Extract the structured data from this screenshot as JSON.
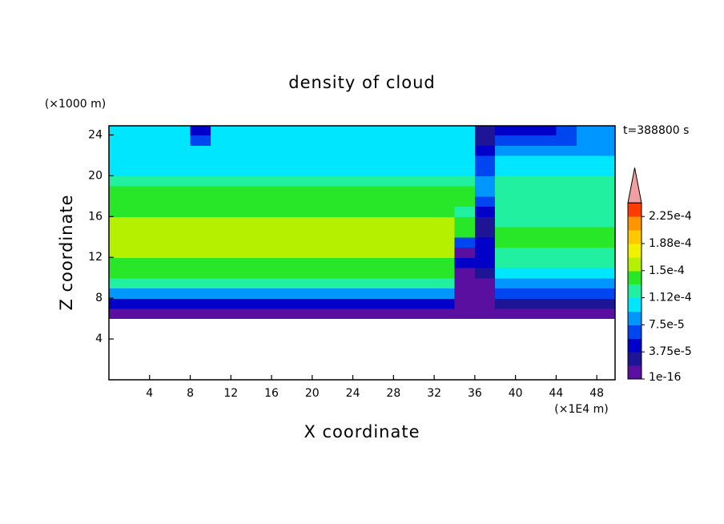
{
  "chart_data": {
    "type": "contour",
    "title": "density of cloud",
    "x_label": "X coordinate",
    "y_label": "Z coordinate",
    "x_unit": "(×1E4 m)",
    "y_unit": "(×1000 m)",
    "annotation": "t=388800 s",
    "xlim": [
      0,
      49.8
    ],
    "ylim": [
      0,
      24.9
    ],
    "xticks": [
      4,
      8,
      12,
      16,
      20,
      24,
      28,
      32,
      36,
      40,
      44,
      48
    ],
    "yticks": [
      4,
      8,
      12,
      16,
      20,
      24
    ],
    "x": [
      1,
      3,
      5,
      7,
      9,
      11,
      13,
      15,
      17,
      19,
      21,
      23,
      25,
      27,
      29,
      31,
      33,
      35,
      37,
      39,
      41,
      43,
      45,
      47,
      49
    ],
    "y": [
      6.5,
      7.5,
      8.5,
      9.5,
      10.5,
      11.5,
      12.5,
      13.5,
      14.5,
      15.5,
      16.5,
      17.5,
      18.5,
      19.5,
      20.5,
      21.5,
      22.5,
      23.5,
      24.5
    ],
    "values": [
      [
        1e-05,
        1e-05,
        1e-05,
        1e-05,
        1e-05,
        1e-05,
        1e-05,
        1e-05,
        1e-05,
        1e-05,
        1e-05,
        1e-05,
        1e-05,
        1e-05,
        1e-05,
        1e-05,
        1e-05,
        1e-05,
        1e-05,
        1e-05,
        1e-05,
        1e-05,
        1e-05,
        1e-05,
        1e-05
      ],
      [
        4e-05,
        4e-05,
        4e-05,
        4e-05,
        4e-05,
        4e-05,
        4e-05,
        4e-05,
        4e-05,
        4e-05,
        4e-05,
        4e-05,
        4e-05,
        4e-05,
        4e-05,
        4e-05,
        4e-05,
        1e-05,
        1e-05,
        3e-05,
        3e-05,
        3e-05,
        3e-05,
        3e-05,
        3e-05
      ],
      [
        8e-05,
        8e-05,
        8e-05,
        8e-05,
        8e-05,
        8e-05,
        8e-05,
        8e-05,
        8e-05,
        8e-05,
        8e-05,
        8e-05,
        8e-05,
        8e-05,
        8e-05,
        8e-05,
        8e-05,
        1e-05,
        1e-05,
        6e-05,
        6e-05,
        6e-05,
        6e-05,
        6e-05,
        6e-05
      ],
      [
        0.000115,
        0.000115,
        0.000115,
        0.000115,
        0.000115,
        0.000115,
        0.000115,
        0.000115,
        0.000115,
        0.000115,
        0.000115,
        0.000115,
        0.000115,
        0.000115,
        0.000115,
        0.000115,
        0.000115,
        1e-05,
        1e-05,
        9e-05,
        9e-05,
        9e-05,
        9e-05,
        9e-05,
        9e-05
      ],
      [
        0.000135,
        0.000135,
        0.000135,
        0.000135,
        0.000135,
        0.000135,
        0.000135,
        0.000135,
        0.000135,
        0.000135,
        0.000135,
        0.000135,
        0.000135,
        0.000135,
        0.000135,
        0.000135,
        0.000135,
        1e-05,
        3e-05,
        0.00011,
        0.00011,
        0.00011,
        0.00011,
        0.00011,
        0.00011
      ],
      [
        0.00014,
        0.00014,
        0.00014,
        0.00014,
        0.00014,
        0.00014,
        0.00014,
        0.00014,
        0.00014,
        0.00014,
        0.00014,
        0.00014,
        0.00014,
        0.00014,
        0.00014,
        0.00014,
        0.00014,
        5e-05,
        5e-05,
        0.00012,
        0.00012,
        0.00012,
        0.00012,
        0.00012,
        0.00012
      ],
      [
        0.00016,
        0.00016,
        0.00016,
        0.00016,
        0.00016,
        0.00016,
        0.00016,
        0.00016,
        0.00016,
        0.00016,
        0.00016,
        0.00016,
        0.00016,
        0.00016,
        0.00016,
        0.00016,
        0.00016,
        1e-05,
        5e-05,
        0.00013,
        0.00013,
        0.00013,
        0.00013,
        0.00013,
        0.00013
      ],
      [
        0.00016,
        0.00016,
        0.00016,
        0.00016,
        0.00016,
        0.00016,
        0.00016,
        0.00016,
        0.00016,
        0.00016,
        0.00016,
        0.00016,
        0.00016,
        0.00016,
        0.00016,
        0.00016,
        0.00016,
        6e-05,
        4e-05,
        0.000145,
        0.000145,
        0.000145,
        0.000145,
        0.000145,
        0.000145
      ],
      [
        0.000162,
        0.000162,
        0.000162,
        0.000162,
        0.000162,
        0.000162,
        0.000162,
        0.000162,
        0.000162,
        0.000162,
        0.000162,
        0.000162,
        0.000162,
        0.000162,
        0.000162,
        0.000162,
        0.000162,
        0.00014,
        3e-05,
        0.00014,
        0.00014,
        0.00014,
        0.00014,
        0.00014,
        0.00014
      ],
      [
        0.00016,
        0.00016,
        0.00016,
        0.00016,
        0.00016,
        0.00016,
        0.00016,
        0.00016,
        0.00016,
        0.00016,
        0.00016,
        0.00016,
        0.00016,
        0.00016,
        0.00016,
        0.00016,
        0.00016,
        0.000145,
        3e-05,
        0.00013,
        0.00013,
        0.00013,
        0.00013,
        0.00013,
        0.00013
      ],
      [
        0.000145,
        0.000145,
        0.000145,
        0.000145,
        0.000145,
        0.000145,
        0.000145,
        0.000145,
        0.000145,
        0.000145,
        0.000145,
        0.000145,
        0.000145,
        0.000145,
        0.000145,
        0.000145,
        0.000145,
        0.00013,
        5e-05,
        0.000125,
        0.000125,
        0.000125,
        0.000125,
        0.000125,
        0.000125
      ],
      [
        0.00014,
        0.00014,
        0.00014,
        0.00014,
        0.00014,
        0.00014,
        0.00014,
        0.00014,
        0.00014,
        0.00014,
        0.00014,
        0.00014,
        0.00014,
        0.00014,
        0.00014,
        0.00014,
        0.00014,
        0.00014,
        7e-05,
        0.00013,
        0.00013,
        0.00013,
        0.00013,
        0.00013,
        0.00013
      ],
      [
        0.000135,
        0.000135,
        0.000135,
        0.000135,
        0.000135,
        0.000135,
        0.000135,
        0.000135,
        0.000135,
        0.000135,
        0.000135,
        0.000135,
        0.000135,
        0.000135,
        0.000135,
        0.000135,
        0.000135,
        0.000135,
        8e-05,
        0.00013,
        0.00013,
        0.00013,
        0.00013,
        0.00013,
        0.00013
      ],
      [
        0.00012,
        0.00012,
        0.00012,
        0.00012,
        0.00012,
        0.00012,
        0.00012,
        0.00012,
        0.00012,
        0.00012,
        0.00012,
        0.00012,
        0.00012,
        0.00012,
        0.00012,
        0.00012,
        0.00012,
        0.00012,
        8e-05,
        0.00012,
        0.00012,
        0.00012,
        0.00012,
        0.00012,
        0.00012
      ],
      [
        0.00011,
        0.00011,
        0.00011,
        0.00011,
        0.00011,
        0.00011,
        0.00011,
        0.00011,
        0.00011,
        0.00011,
        0.00011,
        0.00011,
        0.00011,
        0.00011,
        0.00011,
        0.00011,
        0.00011,
        0.00011,
        7e-05,
        0.000105,
        0.000105,
        0.000105,
        0.000105,
        0.000105,
        0.000105
      ],
      [
        0.0001,
        0.0001,
        0.0001,
        0.0001,
        0.0001,
        0.0001,
        0.0001,
        0.0001,
        0.0001,
        0.0001,
        0.0001,
        0.0001,
        0.0001,
        0.0001,
        0.0001,
        0.0001,
        0.0001,
        0.0001,
        6e-05,
        0.0001,
        0.0001,
        0.0001,
        0.0001,
        0.0001,
        0.0001
      ],
      [
        0.0001,
        0.0001,
        0.0001,
        0.0001,
        0.0001,
        0.0001,
        0.0001,
        0.0001,
        0.0001,
        0.0001,
        0.0001,
        0.0001,
        0.0001,
        0.0001,
        0.0001,
        0.0001,
        0.0001,
        0.0001,
        5e-05,
        9e-05,
        9e-05,
        9e-05,
        9e-05,
        9e-05,
        9e-05
      ],
      [
        9.5e-05,
        9.5e-05,
        9.5e-05,
        9.5e-05,
        6e-05,
        9.5e-05,
        9.5e-05,
        9.5e-05,
        9.5e-05,
        9.5e-05,
        9.5e-05,
        9.5e-05,
        9.5e-05,
        9.5e-05,
        9.5e-05,
        9.5e-05,
        9.5e-05,
        9.5e-05,
        3e-05,
        7e-05,
        7e-05,
        7e-05,
        7e-05,
        9e-05,
        9e-05
      ],
      [
        9.5e-05,
        9.5e-05,
        9.5e-05,
        9.5e-05,
        4e-05,
        9.5e-05,
        9.5e-05,
        9.5e-05,
        9.5e-05,
        9.5e-05,
        9.5e-05,
        9.5e-05,
        9.5e-05,
        9.5e-05,
        9.5e-05,
        9.5e-05,
        9.5e-05,
        9.5e-05,
        2e-05,
        4e-05,
        4e-05,
        4e-05,
        6e-05,
        9e-05,
        9e-05
      ]
    ],
    "levels": [
      1e-16,
      1.875e-05,
      3.75e-05,
      5.625e-05,
      7.5e-05,
      9.375e-05,
      0.0001125,
      0.00013125,
      0.00015,
      0.00016875,
      0.0001875,
      0.00020625,
      0.000225,
      0.00024375
    ],
    "colors": [
      "#5a0fa0",
      "#1e1496",
      "#0000c8",
      "#0046f0",
      "#0096ff",
      "#00e6ff",
      "#20f0a0",
      "#28e628",
      "#b4f000",
      "#f0f000",
      "#ffc800",
      "#ff9600",
      "#ff3c00"
    ],
    "extend_color": "#f0a0a0",
    "colorbar_ticks": [
      1e-16,
      {
        "value": 3.75e-05,
        "label": "3.75e-5"
      },
      {
        "value": 7.5e-05,
        "label": "7.5e-5"
      },
      {
        "value": 0.0001125,
        "label": "1.12e-4"
      },
      {
        "value": 0.00015,
        "label": "1.5e-4"
      },
      {
        "value": 0.0001875,
        "label": "1.88e-4"
      },
      {
        "value": 0.000225,
        "label": "2.25e-4"
      }
    ]
  }
}
